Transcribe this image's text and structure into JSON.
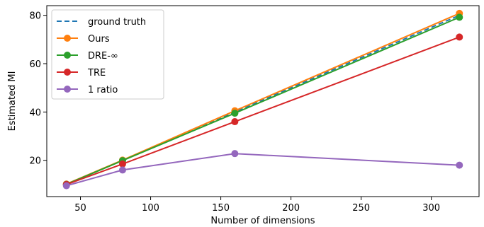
{
  "chart_data": {
    "type": "line",
    "xlabel": "Number of dimensions",
    "ylabel": "Estimated MI",
    "xlim": [
      26,
      334
    ],
    "ylim": [
      5,
      84
    ],
    "xticks": [
      50,
      100,
      150,
      200,
      250,
      300
    ],
    "yticks": [
      20,
      40,
      60,
      80
    ],
    "grid": false,
    "legend_position": "top-left",
    "series": [
      {
        "name": "ground truth",
        "color": "#1f77b4",
        "style": "dashed",
        "marker": "none",
        "x": [
          40,
          80,
          160,
          320
        ],
        "y": [
          10,
          20,
          40,
          80
        ]
      },
      {
        "name": "Ours",
        "color": "#ff7f0e",
        "style": "solid",
        "marker": "circle",
        "x": [
          40,
          80,
          160,
          320
        ],
        "y": [
          10.2,
          20.1,
          40.5,
          80.8
        ]
      },
      {
        "name": "DRE-∞",
        "color": "#2ca02c",
        "style": "solid",
        "marker": "circle",
        "x": [
          40,
          80,
          160,
          320
        ],
        "y": [
          10.1,
          19.9,
          39.5,
          79.2
        ]
      },
      {
        "name": "TRE",
        "color": "#d62728",
        "style": "solid",
        "marker": "circle",
        "x": [
          40,
          80,
          160,
          320
        ],
        "y": [
          10.0,
          18.5,
          36.0,
          71.0
        ]
      },
      {
        "name": "1 ratio",
        "color": "#9467bd",
        "style": "solid",
        "marker": "circle",
        "x": [
          40,
          80,
          160,
          320
        ],
        "y": [
          9.5,
          16.0,
          22.8,
          18.0
        ]
      }
    ]
  }
}
